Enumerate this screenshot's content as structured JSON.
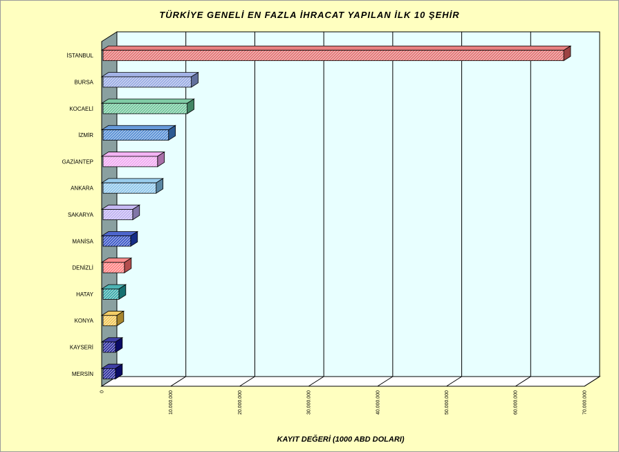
{
  "chart_data": {
    "type": "bar",
    "orientation": "horizontal",
    "style": "3d",
    "title": "TÜRKİYE GENELİ EN FAZLA İHRACAT YAPILAN İLK 10 ŞEHİR",
    "xlabel": "KAYIT DEĞERİ (1000 ABD DOLARI)",
    "ylabel": "",
    "xlim": [
      0,
      70000000
    ],
    "x_ticks": [
      0,
      10000000,
      20000000,
      30000000,
      40000000,
      50000000,
      60000000,
      70000000
    ],
    "x_tick_labels": [
      "0",
      "10.000.000",
      "20.000.000",
      "30.000.000",
      "40.000.000",
      "50.000.000",
      "60.000.000",
      "70.000.000"
    ],
    "grid": true,
    "categories": [
      "İSTANBUL",
      "BURSA",
      "KOCAELİ",
      "İZMİR",
      "GAZİANTEP",
      "ANKARA",
      "SAKARYA",
      "MANİSA",
      "DENİZLİ",
      "HATAY",
      "KONYA",
      "KAYSERİ",
      "MERSİN"
    ],
    "values": [
      67000000,
      13000000,
      12400000,
      9700000,
      8100000,
      7900000,
      4500000,
      4200000,
      3300000,
      2500000,
      2200000,
      2000000,
      2000000
    ],
    "colors": [
      "#e06060",
      "#8ca0e0",
      "#60c090",
      "#4080d0",
      "#f0a0f0",
      "#80c0e8",
      "#b8a8f0",
      "#2040c0",
      "#ff7070",
      "#20a0a0",
      "#f0c040",
      "#101090",
      "#101090"
    ],
    "background": "#ffffc0",
    "plot_background": "#e8ffff",
    "wall_color": "#8aa0a0"
  }
}
